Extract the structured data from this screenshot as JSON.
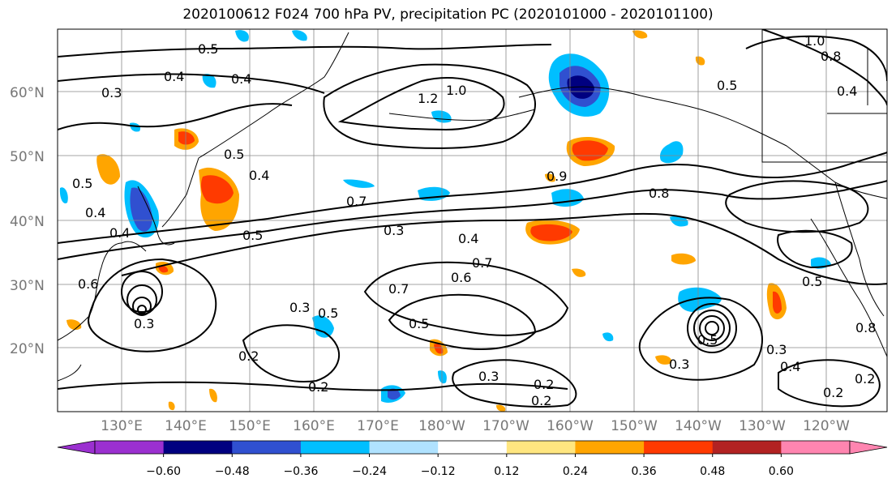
{
  "title": "2020100612 F024 700 hPa PV, precipitation PC (2020101000 - 2020101100)",
  "lat_labels": [
    "60°N",
    "50°N",
    "40°N",
    "30°N",
    "20°N"
  ],
  "lon_labels": [
    "130°E",
    "140°E",
    "150°E",
    "160°E",
    "170°E",
    "180°W",
    "170°W",
    "160°W",
    "150°W",
    "140°W",
    "130°W",
    "120°W"
  ],
  "colorbar": {
    "ticks": [
      "−0.60",
      "−0.48",
      "−0.36",
      "−0.24",
      "−0.12",
      "0.12",
      "0.24",
      "0.36",
      "0.48",
      "0.60"
    ],
    "colors": [
      "#9b30d0",
      "#000080",
      "#3050d0",
      "#00bfff",
      "#b0e2ff",
      "#ffffff",
      "#ffe680",
      "#ffa500",
      "#ff3a00",
      "#b22222",
      "#ff85b0"
    ]
  },
  "contour_labels": [
    "0.5",
    "0.4",
    "0.3",
    "0.4",
    "1.2",
    "1.0",
    "1.0",
    "0.8",
    "0.5",
    "0.4",
    "0.5",
    "0.4",
    "0.7",
    "0.9",
    "0.8",
    "0.3",
    "0.5",
    "0.4",
    "0.7",
    "0.6",
    "0.7",
    "0.5",
    "0.3",
    "0.5",
    "0.5",
    "0.2",
    "0.2",
    "0.2",
    "0.3",
    "0.2",
    "0.3",
    "0.4",
    "0.2",
    "0.2",
    "0.3",
    "0.5",
    "0.4",
    "0.6",
    "0.3",
    "0.5",
    "0.4",
    "0.8"
  ]
}
